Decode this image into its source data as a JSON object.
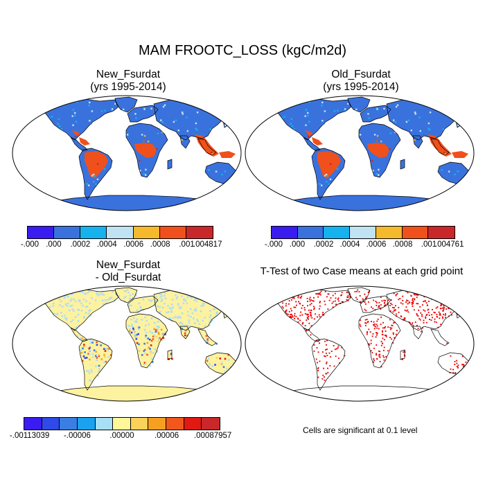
{
  "title": "MAM FROOTC_LOSS (kgC/m2d)",
  "panels": [
    {
      "title_line1": "New_Fsurdat",
      "title_line2": "(yrs 1995-2014)"
    },
    {
      "title_line1": "Old_Fsurdat",
      "title_line2": "(yrs 1995-2014)"
    },
    {
      "title_line1": "New_Fsurdat",
      "title_line2": "- Old_Fsurdat"
    },
    {
      "title_line1": "T-Test of two Case means at each grid point",
      "title_line2": ""
    }
  ],
  "colorbars": [
    {
      "colors": [
        "#3b1cf0",
        "#3a72dd",
        "#16b2ee",
        "#c0e2f2",
        "#f4b92c",
        "#f0501b",
        "#c9282a"
      ],
      "labels": [
        "-.000",
        ".000",
        ".0002",
        ".0004",
        ".0006",
        ".0008",
        ".001",
        ".004817"
      ]
    },
    {
      "colors": [
        "#3b1cf0",
        "#3a72dd",
        "#16b2ee",
        "#c0e2f2",
        "#f4b92c",
        "#f0501b",
        "#c9282a"
      ],
      "labels": [
        "-.000",
        ".000",
        ".0002",
        ".0004",
        ".0006",
        ".0008",
        ".001",
        ".004761"
      ]
    },
    {
      "colors": [
        "#3b1cf0",
        "#2f4ae8",
        "#3a7ee3",
        "#1aa2ef",
        "#a9dff5",
        "#fff69a",
        "#fbd35a",
        "#f5a020",
        "#f0581d",
        "#e01a12",
        "#c9282a"
      ],
      "labels": [
        "-.00113039",
        "-.00006",
        ".00000",
        ".00006",
        ".00087957"
      ]
    }
  ],
  "note": "Cells are significant at 0.1 level",
  "colors": {
    "land_low": "#3a72dd",
    "land_high": "#f0501b",
    "land_peak": "#c9282a",
    "diff_land": "#fdf2a0",
    "diff_mid": "#b9dcef",
    "signif": "#ee0000"
  }
}
